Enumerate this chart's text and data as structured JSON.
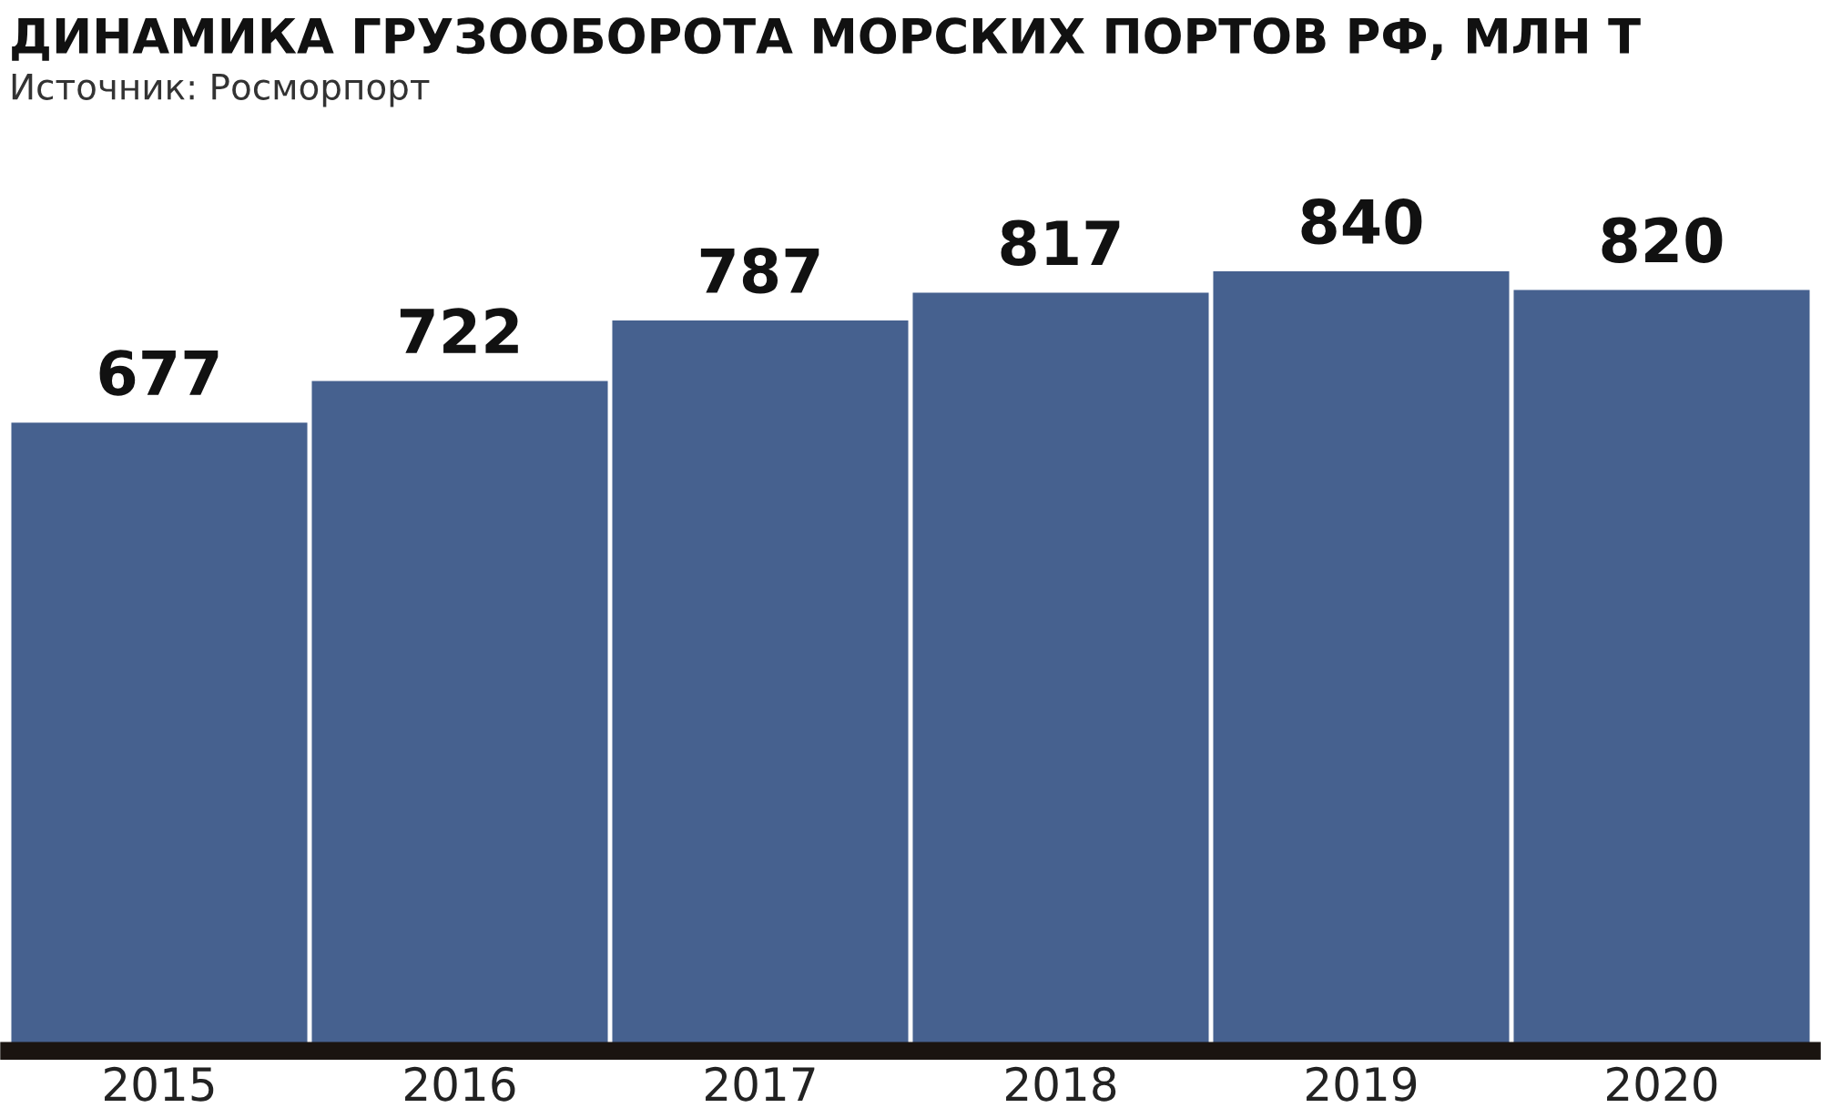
{
  "chart_data": {
    "type": "bar",
    "title": "ДИНАМИКА ГРУЗООБОРОТА МОРСКИХ ПОРТОВ РФ, МЛН Т",
    "subtitle": "Источник: Росморпорт",
    "categories": [
      "2015",
      "2016",
      "2017",
      "2018",
      "2019",
      "2020"
    ],
    "values": [
      677,
      722,
      787,
      817,
      840,
      820
    ],
    "color": "#46618f",
    "data_labels": true,
    "grid": false,
    "legend": false
  }
}
